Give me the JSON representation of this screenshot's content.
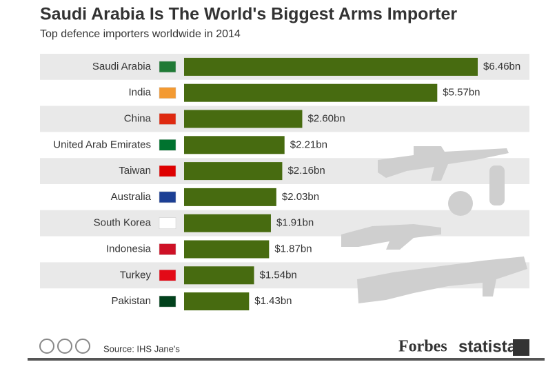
{
  "chart_data": {
    "type": "bar",
    "orientation": "horizontal",
    "title": "Saudi Arabia Is The World's Biggest Arms Importer",
    "subtitle": "Top defence importers worldwide in 2014",
    "categories": [
      "Saudi Arabia",
      "India",
      "China",
      "United Arab Emirates",
      "Taiwan",
      "Australia",
      "South Korea",
      "Indonesia",
      "Turkey",
      "Pakistan"
    ],
    "values": [
      6.46,
      5.57,
      2.6,
      2.21,
      2.16,
      2.03,
      1.91,
      1.87,
      1.54,
      1.43
    ],
    "value_labels": [
      "$6.46bn",
      "$5.57bn",
      "$2.60bn",
      "$2.21bn",
      "$2.16bn",
      "$2.03bn",
      "$1.91bn",
      "$1.87bn",
      "$1.54bn",
      "$1.43bn"
    ],
    "color": "#476b10"
  },
  "footer": {
    "source": "Source: IHS Jane's",
    "brand1": "Forbes",
    "brand2": "statista"
  }
}
